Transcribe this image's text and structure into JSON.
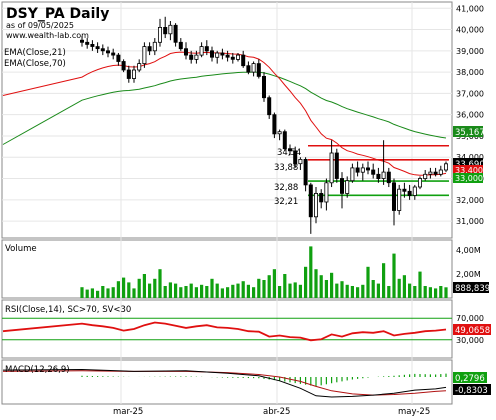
{
  "header": {
    "title": "DSY_PA Daily",
    "date_line": "as of 09/05/2025",
    "site": "www.wealth-lab.com",
    "ema21_label": "EMA(Close,21)",
    "ema70_label": "EMA(Close,70)"
  },
  "axes": {
    "price_ticks": [
      "41,000",
      "40,000",
      "39,000",
      "38,000",
      "37,000",
      "36,000",
      "35,000",
      "34,000",
      "33,000",
      "32,000",
      "31,000"
    ],
    "volume_ticks": [
      "4,00M",
      "2,00M"
    ],
    "rsi_ticks": [
      "70,000",
      "30,000"
    ],
    "month_labels": [
      "mar-25",
      "abr-25",
      "may-25"
    ]
  },
  "price_labels": {
    "ema70": "35,167",
    "close": "33,690",
    "ema21": "33,400",
    "green_upper": "33,000"
  },
  "level_labels": [
    "34,54",
    "33,88",
    "32,88",
    "32,21"
  ],
  "panels": {
    "volume_title": "Volume",
    "volume_value": "888,839",
    "rsi_title": "RSI(Close,14), SC>70, SV<30",
    "rsi_value": "49,0658",
    "macd_title": "MACD(12,26,9)",
    "macd_value1": "0,2796",
    "macd_value2": "-0,8303"
  },
  "colors": {
    "ema21": "#e01010",
    "ema70": "#1a8a1a",
    "volume": "#10a010",
    "resistance": "#e01010",
    "support": "#10a010",
    "rsi_line": "#e01010",
    "rsi_bands": "#10a010",
    "macd_hist": "#10a010"
  },
  "chart_data": {
    "type": "candlestick",
    "symbol": "DSY_PA",
    "interval": "Daily",
    "as_of": "09/05/2025",
    "x_labels": [
      "mar-25",
      "abr-25",
      "may-25"
    ],
    "price_range": [
      30.3,
      41.2
    ],
    "levels": {
      "resistance": [
        34.54,
        33.88
      ],
      "support": [
        32.88,
        32.21
      ]
    },
    "candles": [
      [
        39.5,
        39.7,
        39.2,
        39.4
      ],
      [
        39.4,
        39.6,
        39.1,
        39.3
      ],
      [
        39.3,
        39.5,
        39.0,
        39.2
      ],
      [
        39.2,
        39.4,
        38.9,
        39.1
      ],
      [
        39.1,
        39.3,
        38.8,
        39.0
      ],
      [
        39.0,
        39.2,
        38.7,
        38.9
      ],
      [
        38.9,
        39.1,
        38.6,
        38.8
      ],
      [
        38.8,
        38.9,
        38.3,
        38.5
      ],
      [
        38.5,
        38.6,
        38.0,
        38.1
      ],
      [
        38.1,
        38.3,
        37.5,
        37.7
      ],
      [
        37.7,
        38.3,
        37.5,
        38.1
      ],
      [
        38.1,
        38.6,
        38.0,
        38.4
      ],
      [
        38.4,
        39.4,
        38.2,
        39.2
      ],
      [
        39.2,
        39.4,
        38.8,
        39.0
      ],
      [
        39.0,
        39.6,
        38.8,
        39.4
      ],
      [
        39.4,
        40.5,
        39.2,
        40.1
      ],
      [
        40.1,
        40.6,
        39.6,
        39.8
      ],
      [
        39.8,
        40.4,
        39.5,
        40.2
      ],
      [
        40.2,
        40.3,
        39.2,
        39.4
      ],
      [
        39.4,
        39.6,
        39.0,
        39.1
      ],
      [
        39.1,
        39.4,
        38.6,
        38.8
      ],
      [
        38.8,
        39.0,
        38.4,
        38.6
      ],
      [
        38.6,
        39.0,
        38.4,
        38.8
      ],
      [
        38.8,
        39.4,
        38.7,
        39.2
      ],
      [
        39.2,
        39.5,
        38.8,
        39.0
      ],
      [
        39.0,
        39.2,
        38.5,
        38.7
      ],
      [
        38.7,
        39.0,
        38.4,
        38.9
      ],
      [
        38.9,
        39.1,
        38.6,
        38.8
      ],
      [
        38.8,
        39.0,
        38.5,
        38.7
      ],
      [
        38.7,
        38.9,
        38.4,
        38.6
      ],
      [
        38.6,
        38.9,
        38.5,
        38.8
      ],
      [
        38.8,
        39.0,
        38.2,
        38.3
      ],
      [
        38.3,
        38.5,
        37.9,
        38.0
      ],
      [
        38.0,
        38.5,
        37.8,
        38.4
      ],
      [
        38.4,
        38.6,
        37.7,
        37.8
      ],
      [
        37.8,
        38.0,
        36.6,
        36.8
      ],
      [
        36.8,
        36.9,
        35.8,
        36.0
      ],
      [
        36.0,
        36.1,
        34.9,
        35.1
      ],
      [
        35.1,
        35.3,
        34.8,
        35.2
      ],
      [
        35.2,
        35.3,
        34.3,
        34.4
      ],
      [
        34.4,
        34.6,
        34.1,
        34.3
      ],
      [
        34.3,
        34.5,
        33.5,
        33.7
      ],
      [
        33.7,
        34.0,
        33.4,
        33.9
      ],
      [
        33.9,
        34.0,
        32.4,
        32.7
      ],
      [
        32.7,
        32.8,
        30.4,
        31.2
      ],
      [
        31.2,
        32.6,
        30.9,
        32.3
      ],
      [
        32.3,
        32.5,
        31.6,
        31.9
      ],
      [
        31.9,
        33.0,
        31.5,
        32.8
      ],
      [
        32.8,
        34.8,
        32.6,
        34.2
      ],
      [
        34.2,
        34.4,
        32.8,
        33.0
      ],
      [
        33.0,
        33.3,
        31.6,
        32.3
      ],
      [
        32.3,
        33.1,
        32.1,
        32.9
      ],
      [
        32.9,
        33.7,
        32.8,
        33.5
      ],
      [
        33.5,
        33.8,
        33.1,
        33.3
      ],
      [
        33.3,
        33.7,
        32.9,
        33.5
      ],
      [
        33.5,
        33.8,
        33.2,
        33.4
      ],
      [
        33.4,
        33.7,
        33.0,
        33.2
      ],
      [
        33.2,
        33.5,
        32.8,
        33.0
      ],
      [
        33.0,
        34.8,
        32.7,
        33.3
      ],
      [
        33.3,
        33.5,
        32.6,
        32.8
      ],
      [
        32.8,
        33.0,
        30.8,
        31.5
      ],
      [
        31.5,
        32.7,
        31.3,
        32.5
      ],
      [
        32.5,
        32.8,
        32.1,
        32.4
      ],
      [
        32.4,
        32.7,
        32.0,
        32.2
      ],
      [
        32.2,
        32.7,
        32.0,
        32.6
      ],
      [
        32.6,
        33.1,
        32.5,
        33.0
      ],
      [
        33.0,
        33.4,
        32.9,
        33.2
      ],
      [
        33.2,
        33.5,
        33.0,
        33.3
      ],
      [
        33.3,
        33.5,
        33.1,
        33.2
      ],
      [
        33.2,
        33.6,
        33.1,
        33.4
      ],
      [
        33.4,
        33.8,
        33.3,
        33.69
      ]
    ],
    "volume_m": [
      0.9,
      0.7,
      0.8,
      0.6,
      1.0,
      0.8,
      0.9,
      1.4,
      1.7,
      1.3,
      0.8,
      1.6,
      2.0,
      1.2,
      1.6,
      2.4,
      1.0,
      1.3,
      1.2,
      0.9,
      1.0,
      1.2,
      0.9,
      1.1,
      1.0,
      1.6,
      1.2,
      0.8,
      0.9,
      1.1,
      1.2,
      1.4,
      1.1,
      0.9,
      1.6,
      1.5,
      1.9,
      2.4,
      1.0,
      2.0,
      1.2,
      1.3,
      1.1,
      2.6,
      4.3,
      2.4,
      1.9,
      1.5,
      2.1,
      1.2,
      1.4,
      1.1,
      1.0,
      0.9,
      1.1,
      2.6,
      1.5,
      1.2,
      2.9,
      1.0,
      3.7,
      1.6,
      1.9,
      1.2,
      1.0,
      2.2,
      1.0,
      0.9,
      0.8,
      1.0,
      0.89
    ],
    "rsi": [
      [
        0,
        60
      ],
      [
        2,
        57
      ],
      [
        4,
        55
      ],
      [
        6,
        52
      ],
      [
        8,
        47
      ],
      [
        10,
        50
      ],
      [
        12,
        57
      ],
      [
        14,
        62
      ],
      [
        16,
        60
      ],
      [
        18,
        56
      ],
      [
        20,
        52
      ],
      [
        22,
        55
      ],
      [
        24,
        57
      ],
      [
        26,
        53
      ],
      [
        28,
        52
      ],
      [
        30,
        50
      ],
      [
        32,
        46
      ],
      [
        34,
        45
      ],
      [
        36,
        36
      ],
      [
        38,
        38
      ],
      [
        40,
        35
      ],
      [
        42,
        34
      ],
      [
        44,
        29
      ],
      [
        46,
        31
      ],
      [
        48,
        40
      ],
      [
        50,
        36
      ],
      [
        52,
        42
      ],
      [
        54,
        44
      ],
      [
        56,
        43
      ],
      [
        58,
        46
      ],
      [
        60,
        38
      ],
      [
        62,
        41
      ],
      [
        64,
        43
      ],
      [
        66,
        46
      ],
      [
        68,
        47
      ],
      [
        70,
        49.07
      ]
    ],
    "macd_line": [
      [
        0,
        0.6
      ],
      [
        10,
        0.45
      ],
      [
        20,
        0.5
      ],
      [
        28,
        0.3
      ],
      [
        34,
        0.1
      ],
      [
        38,
        -0.3
      ],
      [
        42,
        -0.9
      ],
      [
        45,
        -1.5
      ],
      [
        48,
        -1.6
      ],
      [
        52,
        -1.55
      ],
      [
        56,
        -1.45
      ],
      [
        60,
        -1.3
      ],
      [
        64,
        -1.05
      ],
      [
        68,
        -0.95
      ],
      [
        70,
        -0.83
      ]
    ],
    "macd_signal": [
      [
        0,
        0.5
      ],
      [
        10,
        0.45
      ],
      [
        20,
        0.45
      ],
      [
        28,
        0.35
      ],
      [
        34,
        0.2
      ],
      [
        38,
        0.0
      ],
      [
        42,
        -0.35
      ],
      [
        45,
        -0.75
      ],
      [
        48,
        -1.1
      ],
      [
        52,
        -1.35
      ],
      [
        56,
        -1.45
      ],
      [
        60,
        -1.4
      ],
      [
        64,
        -1.3
      ],
      [
        68,
        -1.15
      ],
      [
        70,
        -1.1
      ]
    ],
    "macd_range": [
      -2.0,
      1.2
    ]
  }
}
